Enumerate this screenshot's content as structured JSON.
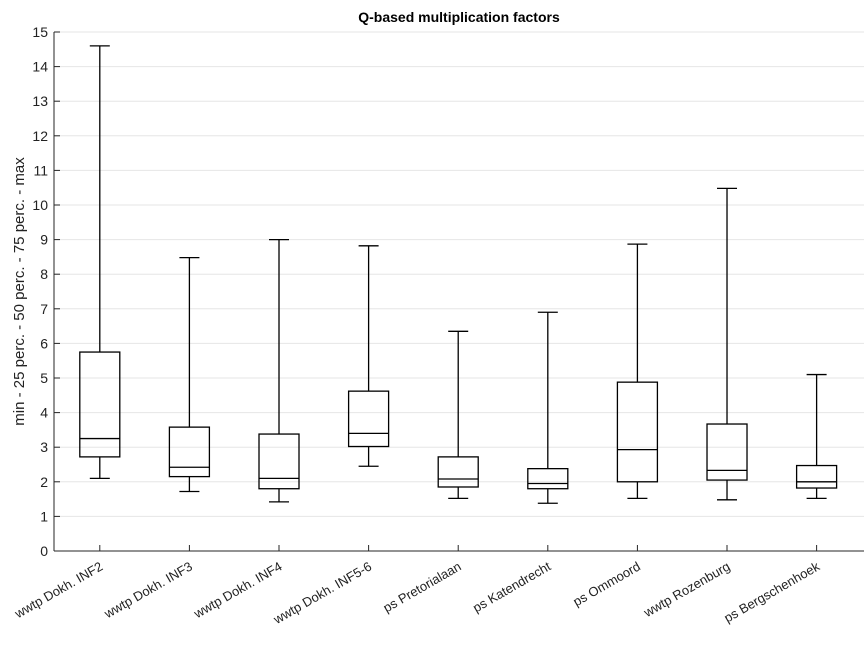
{
  "chart_data": {
    "type": "box",
    "title": "Q-based multiplication factors",
    "ylabel": "min - 25 perc. - 50 perc. - 75 perc. - max",
    "xlabel": "",
    "ylim": [
      0,
      15
    ],
    "yticks": [
      0,
      1,
      2,
      3,
      4,
      5,
      6,
      7,
      8,
      9,
      10,
      11,
      12,
      13,
      14,
      15
    ],
    "grid": "horizontal",
    "categories": [
      "wwtp Dokh. INF2",
      "wwtp Dokh. INF3",
      "wwtp Dokh. INF4",
      "wwtp Dokh. INF5-6",
      "ps Pretorialaan",
      "ps Katendrecht",
      "ps Ommoord",
      "wwtp Rozenburg",
      "ps Bergschenhoek"
    ],
    "series": [
      {
        "stats": [
          {
            "min": 2.1,
            "q1": 2.72,
            "median": 3.25,
            "q3": 5.75,
            "max": 14.6
          },
          {
            "min": 1.72,
            "q1": 2.15,
            "median": 2.42,
            "q3": 3.58,
            "max": 8.48
          },
          {
            "min": 1.42,
            "q1": 1.8,
            "median": 2.1,
            "q3": 3.38,
            "max": 9.0
          },
          {
            "min": 2.45,
            "q1": 3.02,
            "median": 3.4,
            "q3": 4.62,
            "max": 8.82
          },
          {
            "min": 1.52,
            "q1": 1.85,
            "median": 2.08,
            "q3": 2.72,
            "max": 6.35
          },
          {
            "min": 1.38,
            "q1": 1.8,
            "median": 1.95,
            "q3": 2.38,
            "max": 6.9
          },
          {
            "min": 1.52,
            "q1": 2.0,
            "median": 2.93,
            "q3": 4.88,
            "max": 8.87
          },
          {
            "min": 1.48,
            "q1": 2.05,
            "median": 2.33,
            "q3": 3.67,
            "max": 10.48
          },
          {
            "min": 1.52,
            "q1": 1.82,
            "median": 2.0,
            "q3": 2.47,
            "max": 5.1
          }
        ]
      }
    ]
  }
}
